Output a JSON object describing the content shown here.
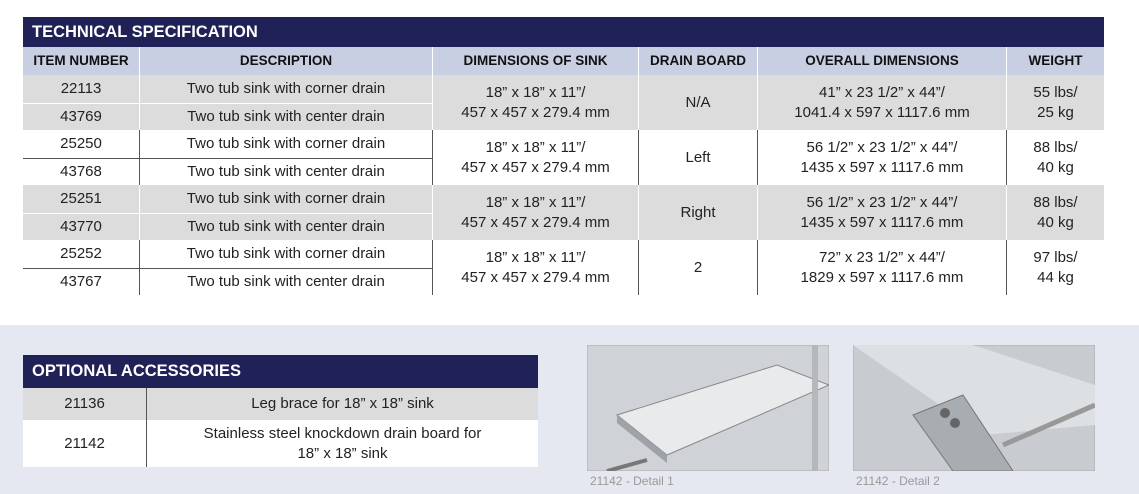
{
  "technical": {
    "title": "TECHNICAL SPECIFICATION",
    "headers": [
      "ITEM NUMBER",
      "DESCRIPTION",
      "DIMENSIONS OF SINK",
      "DRAIN BOARD",
      "OVERALL DIMENSIONS",
      "WEIGHT"
    ],
    "groups": [
      {
        "items": [
          {
            "item_number": "22113",
            "description": "Two tub sink with corner drain"
          },
          {
            "item_number": "43769",
            "description": "Two tub sink with center drain"
          }
        ],
        "dimensions": [
          "18” x 18” x 11”/",
          "457 x 457 x 279.4 mm"
        ],
        "drain_board": "N/A",
        "overall": [
          "41” x 23 1/2” x 44”/",
          "1041.4 x 597 x 1117.6 mm"
        ],
        "weight": [
          "55 lbs/",
          "25 kg"
        ]
      },
      {
        "items": [
          {
            "item_number": "25250",
            "description": "Two tub sink with corner drain"
          },
          {
            "item_number": "43768",
            "description": "Two tub sink with center drain"
          }
        ],
        "dimensions": [
          "18” x 18” x 11”/",
          "457 x 457 x 279.4 mm"
        ],
        "drain_board": "Left",
        "overall": [
          "56 1/2” x 23 1/2” x 44”/",
          "1435 x 597 x 1117.6 mm"
        ],
        "weight": [
          "88 lbs/",
          "40 kg"
        ]
      },
      {
        "items": [
          {
            "item_number": "25251",
            "description": "Two tub sink with corner drain"
          },
          {
            "item_number": "43770",
            "description": "Two tub sink with center drain"
          }
        ],
        "dimensions": [
          "18” x 18” x 11”/",
          "457 x 457 x 279.4 mm"
        ],
        "drain_board": "Right",
        "overall": [
          "56 1/2” x 23 1/2” x 44”/",
          "1435 x 597 x 1117.6 mm"
        ],
        "weight": [
          "88 lbs/",
          "40 kg"
        ]
      },
      {
        "items": [
          {
            "item_number": "25252",
            "description": "Two tub sink with corner drain"
          },
          {
            "item_number": "43767",
            "description": "Two tub sink with center drain"
          }
        ],
        "dimensions": [
          "18” x 18” x 11”/",
          "457 x 457 x 279.4 mm"
        ],
        "drain_board": "2",
        "overall": [
          "72” x 23 1/2” x 44”/",
          "1829 x 597 x 1117.6 mm"
        ],
        "weight": [
          "97 lbs/",
          "44 kg"
        ]
      }
    ]
  },
  "accessories": {
    "title": "OPTIONAL ACCESSORIES",
    "rows": [
      {
        "item_number": "21136",
        "description": [
          "Leg brace for 18” x 18” sink"
        ]
      },
      {
        "item_number": "21142",
        "description": [
          "Stainless steel knockdown drain board for",
          "18” x 18” sink"
        ]
      }
    ]
  },
  "images": [
    {
      "caption": "21142 - Detail 1"
    },
    {
      "caption": "21142 - Detail 2"
    }
  ]
}
